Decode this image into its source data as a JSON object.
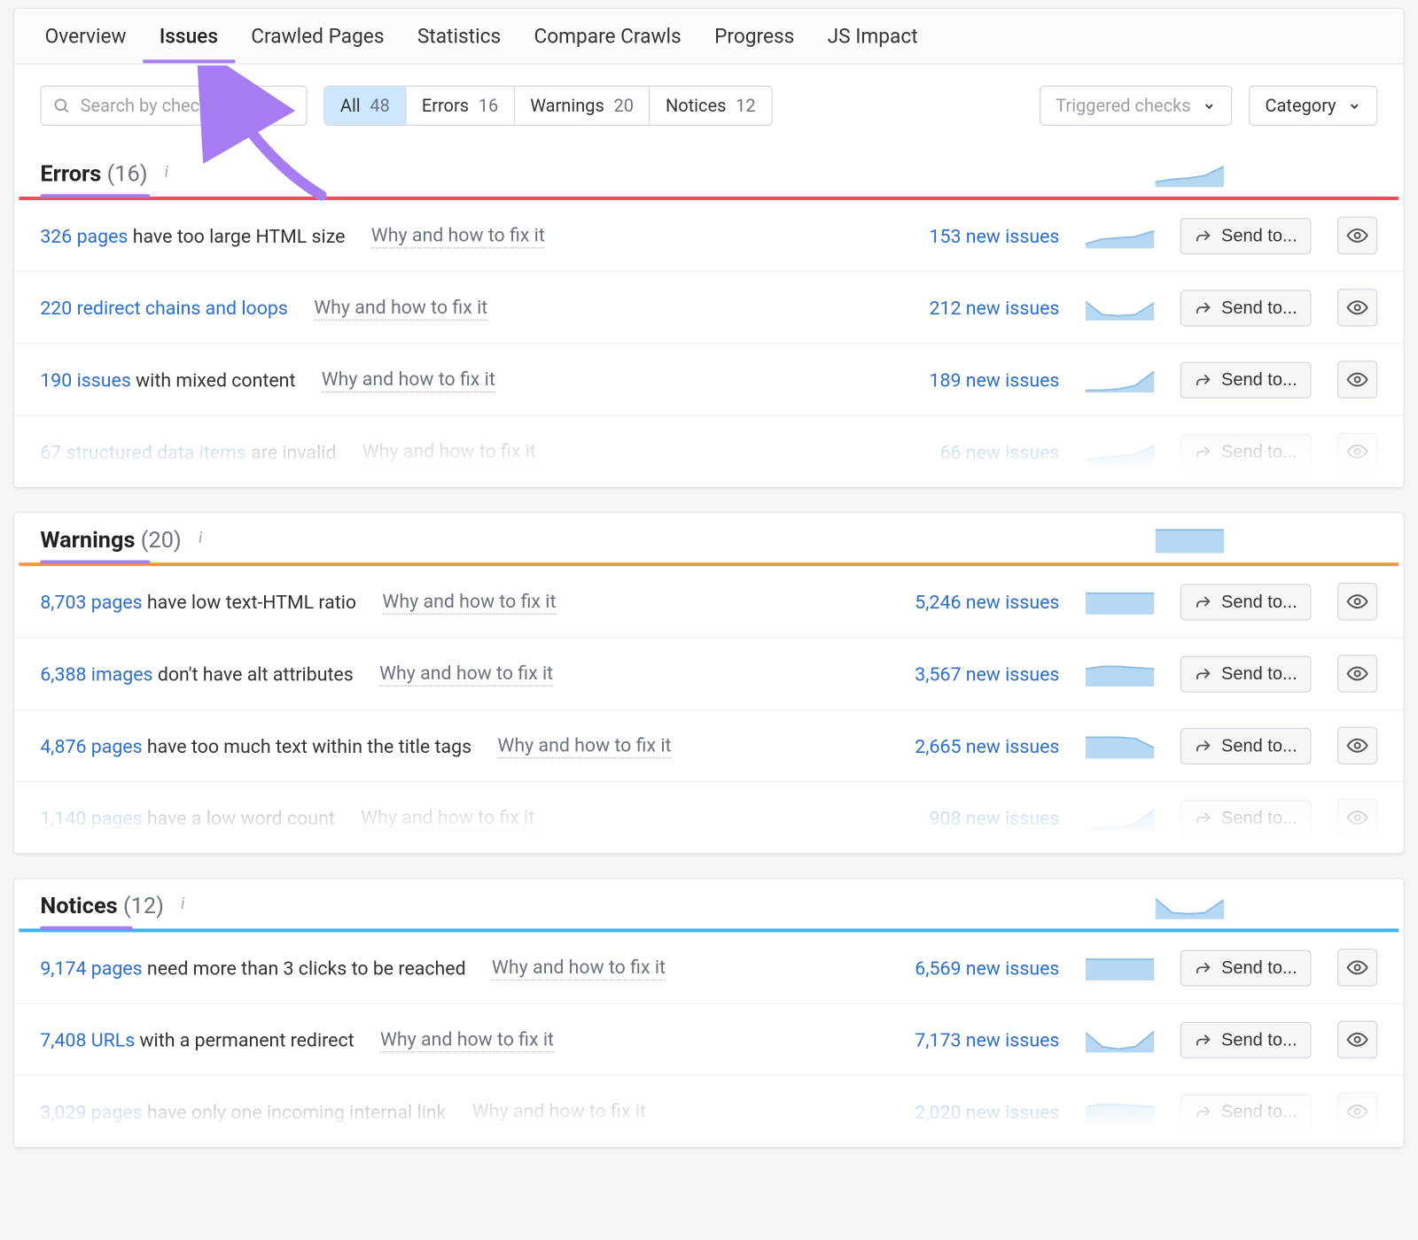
{
  "colors": {
    "accent_purple": "#a67cf2",
    "error": "#f24b5a",
    "warning": "#f59b2d",
    "notice": "#3fb2ef",
    "link": "#2d6fce",
    "spark_fill": "#cfe4f6",
    "spark_stroke": "#8fbde4",
    "spark_fill_dark": "#b7d8f2"
  },
  "tabs": [
    {
      "label": "Overview"
    },
    {
      "label": "Issues",
      "active": true
    },
    {
      "label": "Crawled Pages"
    },
    {
      "label": "Statistics"
    },
    {
      "label": "Compare Crawls"
    },
    {
      "label": "Progress"
    },
    {
      "label": "JS Impact"
    }
  ],
  "search_placeholder": "Search by check",
  "filter_pills": [
    {
      "label": "All",
      "count": "48",
      "active": true
    },
    {
      "label": "Errors",
      "count": "16"
    },
    {
      "label": "Warnings",
      "count": "20"
    },
    {
      "label": "Notices",
      "count": "12"
    }
  ],
  "dropdowns": {
    "triggered": "Triggered checks",
    "category": "Category"
  },
  "why_label": "Why and how to fix it",
  "sendto_label": "Send to...",
  "sections": [
    {
      "title": "Errors",
      "count": "16",
      "type": "error",
      "underline_width": 93,
      "head_spark": "curve_up",
      "rows": [
        {
          "link": "326 pages",
          "text": " have too large HTML size",
          "new": "153 new issues",
          "spark": "curve_up2"
        },
        {
          "link": "220 redirect chains and loops",
          "text": "",
          "new": "212 new issues",
          "spark": "dip"
        },
        {
          "link": "190 issues",
          "text": " with mixed content",
          "new": "189 new issues",
          "spark": "rise"
        },
        {
          "link": "67 structured data items",
          "text": " are invalid",
          "new": "66 new issues",
          "spark": "curve_up",
          "faded": true
        }
      ]
    },
    {
      "title": "Warnings",
      "count": "20",
      "type": "warning",
      "underline_width": 93,
      "head_spark": "flat_high",
      "rows": [
        {
          "link": "8,703 pages",
          "text": " have low text-HTML ratio",
          "new": "5,246 new issues",
          "spark": "flat_high"
        },
        {
          "link": "6,388 images",
          "text": " don't have alt attributes",
          "new": "3,567 new issues",
          "spark": "plateau"
        },
        {
          "link": "4,876 pages",
          "text": " have too much text within the title tags",
          "new": "2,665 new issues",
          "spark": "slope_down"
        },
        {
          "link": "1,140 pages",
          "text": " have a low word count",
          "new": "908 new issues",
          "spark": "rise",
          "faded": true
        }
      ]
    },
    {
      "title": "Notices",
      "count": "12",
      "type": "notice",
      "underline_width": 78,
      "head_spark": "dip",
      "rows": [
        {
          "link": "9,174 pages",
          "text": " need more than 3 clicks to be reached",
          "new": "6,569 new issues",
          "spark": "flat_high"
        },
        {
          "link": "7,408 URLs",
          "text": " with a permanent redirect",
          "new": "7,173 new issues",
          "spark": "vee"
        },
        {
          "link": "3,029 pages",
          "text": " have only one incoming internal link",
          "new": "2,020 new issues",
          "spark": "plateau",
          "faded": true
        }
      ]
    }
  ],
  "sparklines": {
    "curve_up": {
      "points": [
        [
          0,
          18
        ],
        [
          14,
          16
        ],
        [
          28,
          15
        ],
        [
          42,
          13
        ],
        [
          58,
          6
        ]
      ]
    },
    "curve_up2": {
      "points": [
        [
          0,
          18
        ],
        [
          14,
          14
        ],
        [
          28,
          13
        ],
        [
          42,
          12
        ],
        [
          58,
          7
        ]
      ]
    },
    "dip": {
      "points": [
        [
          0,
          6
        ],
        [
          14,
          17
        ],
        [
          28,
          18
        ],
        [
          42,
          17
        ],
        [
          58,
          7
        ]
      ]
    },
    "rise": {
      "points": [
        [
          0,
          20
        ],
        [
          14,
          20
        ],
        [
          28,
          19
        ],
        [
          42,
          16
        ],
        [
          58,
          4
        ]
      ]
    },
    "flat_high": {
      "points": [
        [
          0,
          4
        ],
        [
          14,
          4
        ],
        [
          28,
          4
        ],
        [
          42,
          4
        ],
        [
          58,
          4
        ]
      ]
    },
    "plateau": {
      "points": [
        [
          0,
          7
        ],
        [
          14,
          5
        ],
        [
          28,
          5
        ],
        [
          42,
          6
        ],
        [
          58,
          7
        ]
      ]
    },
    "slope_down": {
      "points": [
        [
          0,
          4
        ],
        [
          14,
          4
        ],
        [
          28,
          4
        ],
        [
          42,
          5
        ],
        [
          58,
          13
        ]
      ]
    },
    "vee": {
      "points": [
        [
          0,
          5
        ],
        [
          14,
          17
        ],
        [
          28,
          19
        ],
        [
          42,
          17
        ],
        [
          58,
          4
        ]
      ]
    }
  }
}
